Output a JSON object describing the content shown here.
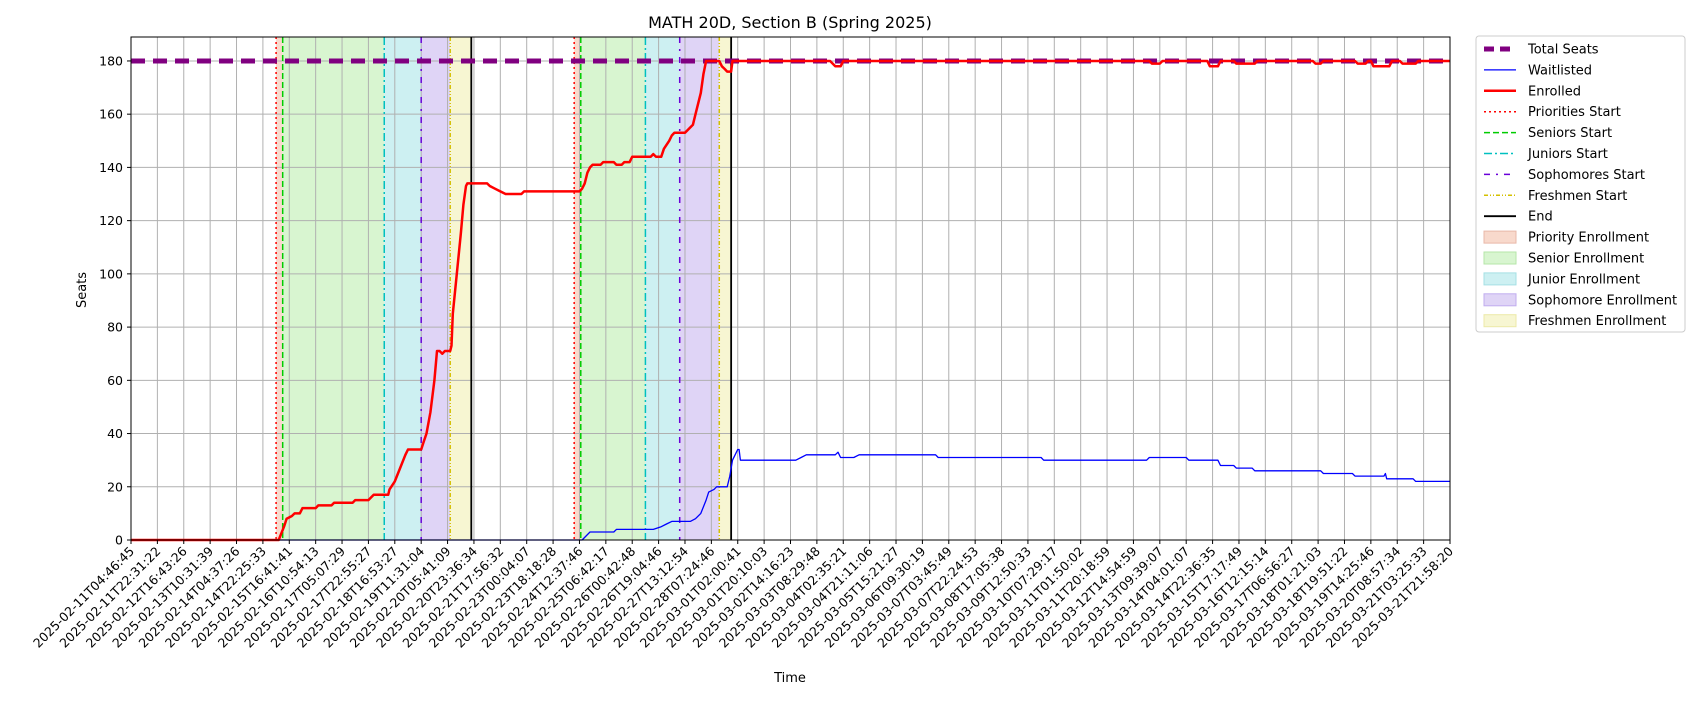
{
  "chart_data": {
    "type": "line",
    "title": "MATH 20D, Section B (Spring 2025)",
    "xlabel": "Time",
    "ylabel": "Seats",
    "ylim": [
      0,
      189
    ],
    "yticks": [
      0,
      20,
      40,
      60,
      80,
      100,
      120,
      140,
      160,
      180
    ],
    "grid": true,
    "legend_position": "outside-right-top",
    "colors": {
      "total": "#800080",
      "waitlisted": "#0000ff",
      "enrolled": "#ff0000",
      "priorities": "#ff0000",
      "seniors": "#00cc00",
      "juniors": "#00c0c0",
      "sophomores": "#6a00d9",
      "freshmen": "#d4c000",
      "end": "#000000",
      "priority_fill": "#f8d9cc",
      "senior_fill": "#d8f5d0",
      "junior_fill": "#cdf0f2",
      "sophomore_fill": "#dfd4f6",
      "freshmen_fill": "#f7f6d2"
    },
    "x_tick_labels": [
      "2025-02-11T04:46:45",
      "2025-02-11T22:31:22",
      "2025-02-12T16:43:26",
      "2025-02-13T10:31:39",
      "2025-02-14T04:37:26",
      "2025-02-14T22:25:33",
      "2025-02-15T16:41:41",
      "2025-02-16T10:54:13",
      "2025-02-17T05:07:29",
      "2025-02-17T22:55:27",
      "2025-02-18T16:53:27",
      "2025-02-19T11:31:04",
      "2025-02-20T05:41:09",
      "2025-02-20T23:36:34",
      "2025-02-21T17:56:32",
      "2025-02-23T00:04:07",
      "2025-02-23T18:18:28",
      "2025-02-24T12:37:46",
      "2025-02-25T06:42:17",
      "2025-02-26T00:42:48",
      "2025-02-26T19:04:46",
      "2025-02-27T13:12:54",
      "2025-02-28T07:24:46",
      "2025-03-01T02:00:41",
      "2025-03-01T20:10:03",
      "2025-03-02T14:16:23",
      "2025-03-03T08:29:48",
      "2025-03-04T02:35:21",
      "2025-03-04T21:11:06",
      "2025-03-05T15:21:27",
      "2025-03-06T09:30:19",
      "2025-03-07T03:45:49",
      "2025-03-07T22:24:53",
      "2025-03-08T17:05:38",
      "2025-03-09T12:50:33",
      "2025-03-10T07:29:17",
      "2025-03-11T01:50:02",
      "2025-03-11T20:18:59",
      "2025-03-12T14:54:59",
      "2025-03-13T09:39:07",
      "2025-03-14T04:01:07",
      "2025-03-14T22:36:35",
      "2025-03-15T17:17:49",
      "2025-03-16T12:15:14",
      "2025-03-17T06:56:27",
      "2025-03-18T01:21:03",
      "2025-03-18T19:51:22",
      "2025-03-19T14:25:46",
      "2025-03-20T08:57:34",
      "2025-03-21T03:25:33",
      "2025-03-21T21:58:20"
    ],
    "x_index_range": [
      0,
      50
    ],
    "periods": [
      {
        "priority": [
          5.5,
          5.75
        ],
        "senior": [
          5.75,
          9.6
        ],
        "junior": [
          9.6,
          11.0
        ],
        "sophomore": [
          11.0,
          12.1
        ],
        "freshmen": [
          12.1,
          12.9
        ],
        "end": 12.9
      },
      {
        "priority": [
          16.8,
          17.05
        ],
        "senior": [
          17.05,
          19.5
        ],
        "junior": [
          19.5,
          20.8
        ],
        "sophomore": [
          20.8,
          22.3
        ],
        "freshmen": [
          22.3,
          22.75
        ],
        "end": 22.75
      }
    ],
    "series": [
      {
        "name": "Total Seats",
        "points": [
          [
            0,
            180
          ],
          [
            50,
            180
          ]
        ]
      },
      {
        "name": "Waitlisted",
        "points": [
          [
            0,
            0
          ],
          [
            17.1,
            0
          ],
          [
            17.4,
            3
          ],
          [
            18.3,
            3
          ],
          [
            18.4,
            4
          ],
          [
            19.8,
            4
          ],
          [
            20.1,
            5
          ],
          [
            20.3,
            6
          ],
          [
            20.5,
            7
          ],
          [
            21.2,
            7
          ],
          [
            21.4,
            8
          ],
          [
            21.6,
            10
          ],
          [
            21.8,
            15
          ],
          [
            21.9,
            18
          ],
          [
            22.1,
            19
          ],
          [
            22.2,
            20
          ],
          [
            22.6,
            20
          ],
          [
            22.7,
            24
          ],
          [
            22.8,
            30
          ],
          [
            22.95,
            33
          ],
          [
            23.0,
            34
          ],
          [
            23.05,
            34
          ],
          [
            23.1,
            30
          ],
          [
            25.2,
            30
          ],
          [
            25.4,
            31
          ],
          [
            25.6,
            32
          ],
          [
            26.7,
            32
          ],
          [
            26.8,
            33
          ],
          [
            26.9,
            31
          ],
          [
            27.4,
            31
          ],
          [
            27.6,
            32
          ],
          [
            30.5,
            32
          ],
          [
            30.6,
            31
          ],
          [
            34.5,
            31
          ],
          [
            34.6,
            30
          ],
          [
            38.5,
            30
          ],
          [
            38.6,
            31
          ],
          [
            40.0,
            31
          ],
          [
            40.1,
            30
          ],
          [
            41.2,
            30
          ],
          [
            41.3,
            28
          ],
          [
            41.8,
            28
          ],
          [
            41.9,
            27
          ],
          [
            42.5,
            27
          ],
          [
            42.6,
            26
          ],
          [
            45.1,
            26
          ],
          [
            45.2,
            25
          ],
          [
            46.3,
            25
          ],
          [
            46.4,
            24
          ],
          [
            47.5,
            24
          ],
          [
            47.55,
            25
          ],
          [
            47.6,
            23
          ],
          [
            48.6,
            23
          ],
          [
            48.7,
            22
          ],
          [
            50,
            22
          ]
        ]
      },
      {
        "name": "Enrolled",
        "points": [
          [
            0,
            0
          ],
          [
            5.6,
            0
          ],
          [
            5.8,
            5
          ],
          [
            5.9,
            8
          ],
          [
            6.1,
            9
          ],
          [
            6.2,
            10
          ],
          [
            6.4,
            10
          ],
          [
            6.5,
            12
          ],
          [
            7.0,
            12
          ],
          [
            7.1,
            13
          ],
          [
            7.6,
            13
          ],
          [
            7.7,
            14
          ],
          [
            8.4,
            14
          ],
          [
            8.5,
            15
          ],
          [
            9.0,
            15
          ],
          [
            9.1,
            16
          ],
          [
            9.2,
            17
          ],
          [
            9.75,
            17
          ],
          [
            9.8,
            19
          ],
          [
            10.0,
            22
          ],
          [
            10.2,
            27
          ],
          [
            10.4,
            32
          ],
          [
            10.5,
            34
          ],
          [
            11.0,
            34
          ],
          [
            11.1,
            37
          ],
          [
            11.2,
            40
          ],
          [
            11.35,
            48
          ],
          [
            11.5,
            60
          ],
          [
            11.6,
            71
          ],
          [
            11.7,
            71
          ],
          [
            11.8,
            70
          ],
          [
            11.9,
            71
          ],
          [
            12.1,
            71
          ],
          [
            12.15,
            73
          ],
          [
            12.2,
            85
          ],
          [
            12.35,
            100
          ],
          [
            12.5,
            115
          ],
          [
            12.6,
            126
          ],
          [
            12.7,
            133
          ],
          [
            12.75,
            134
          ],
          [
            13.5,
            134
          ],
          [
            13.6,
            133
          ],
          [
            13.8,
            132
          ],
          [
            14.0,
            131
          ],
          [
            14.2,
            130
          ],
          [
            14.8,
            130
          ],
          [
            14.9,
            131
          ],
          [
            17.0,
            131
          ],
          [
            17.1,
            132
          ],
          [
            17.2,
            134
          ],
          [
            17.3,
            138
          ],
          [
            17.4,
            140
          ],
          [
            17.5,
            141
          ],
          [
            17.8,
            141
          ],
          [
            17.9,
            142
          ],
          [
            18.3,
            142
          ],
          [
            18.4,
            141
          ],
          [
            18.6,
            141
          ],
          [
            18.7,
            142
          ],
          [
            18.9,
            142
          ],
          [
            19.0,
            144
          ],
          [
            19.7,
            144
          ],
          [
            19.8,
            145
          ],
          [
            19.9,
            144
          ],
          [
            20.1,
            144
          ],
          [
            20.2,
            147
          ],
          [
            20.4,
            150
          ],
          [
            20.5,
            152
          ],
          [
            20.6,
            153
          ],
          [
            20.9,
            153
          ],
          [
            21.0,
            153
          ],
          [
            21.1,
            154
          ],
          [
            21.3,
            156
          ],
          [
            21.4,
            160
          ],
          [
            21.6,
            168
          ],
          [
            21.7,
            175
          ],
          [
            21.8,
            180
          ],
          [
            22.3,
            180
          ],
          [
            22.4,
            178
          ],
          [
            22.5,
            177
          ],
          [
            22.6,
            176
          ],
          [
            22.75,
            176
          ],
          [
            22.8,
            180
          ],
          [
            26.5,
            180
          ],
          [
            26.6,
            179
          ],
          [
            26.7,
            178
          ],
          [
            26.9,
            178
          ],
          [
            27.0,
            180
          ],
          [
            38.6,
            180
          ],
          [
            38.7,
            179
          ],
          [
            39.0,
            179
          ],
          [
            39.1,
            180
          ],
          [
            40.8,
            180
          ],
          [
            40.9,
            178
          ],
          [
            41.2,
            178
          ],
          [
            41.3,
            180
          ],
          [
            41.8,
            180
          ],
          [
            41.9,
            179
          ],
          [
            42.6,
            179
          ],
          [
            42.7,
            180
          ],
          [
            44.8,
            180
          ],
          [
            44.9,
            179
          ],
          [
            45.1,
            179
          ],
          [
            45.2,
            180
          ],
          [
            46.4,
            180
          ],
          [
            46.5,
            179
          ],
          [
            46.8,
            179
          ],
          [
            46.9,
            180
          ],
          [
            47.0,
            180
          ],
          [
            47.1,
            178
          ],
          [
            47.7,
            178
          ],
          [
            47.8,
            180
          ],
          [
            48.1,
            180
          ],
          [
            48.2,
            179
          ],
          [
            48.7,
            179
          ],
          [
            48.8,
            180
          ],
          [
            50,
            180
          ]
        ]
      }
    ],
    "legend": [
      {
        "label": "Total Seats",
        "kind": "line",
        "color": "#800080",
        "width": 5,
        "dash": "10 6"
      },
      {
        "label": "Waitlisted",
        "kind": "line",
        "color": "#0000ff",
        "width": 1.3,
        "dash": ""
      },
      {
        "label": "Enrolled",
        "kind": "line",
        "color": "#ff0000",
        "width": 2.5,
        "dash": ""
      },
      {
        "label": "Priorities Start",
        "kind": "line",
        "color": "#ff0000",
        "width": 1.5,
        "dash": "2 3"
      },
      {
        "label": "Seniors Start",
        "kind": "line",
        "color": "#00cc00",
        "width": 1.5,
        "dash": "6 3"
      },
      {
        "label": "Juniors Start",
        "kind": "line",
        "color": "#00c0c0",
        "width": 1.5,
        "dash": "8 3 2 3"
      },
      {
        "label": "Sophomores Start",
        "kind": "line",
        "color": "#6a00d9",
        "width": 1.5,
        "dash": "6 6 2 6"
      },
      {
        "label": "Freshmen Start",
        "kind": "line",
        "color": "#d4c000",
        "width": 1.5,
        "dash": "4 2 1 2 1 2"
      },
      {
        "label": "End",
        "kind": "line",
        "color": "#000000",
        "width": 1.8,
        "dash": ""
      },
      {
        "label": "Priority Enrollment",
        "kind": "patch",
        "color": "#f8d9cc",
        "edge": "#e8b8a8"
      },
      {
        "label": "Senior Enrollment",
        "kind": "patch",
        "color": "#d8f5d0",
        "edge": "#b6e6a8"
      },
      {
        "label": "Junior Enrollment",
        "kind": "patch",
        "color": "#cdf0f2",
        "edge": "#a5e0e4"
      },
      {
        "label": "Sophomore Enrollment",
        "kind": "patch",
        "color": "#dfd4f6",
        "edge": "#c0adef"
      },
      {
        "label": "Freshmen Enrollment",
        "kind": "patch",
        "color": "#f7f6d2",
        "edge": "#ece9a8"
      }
    ]
  }
}
